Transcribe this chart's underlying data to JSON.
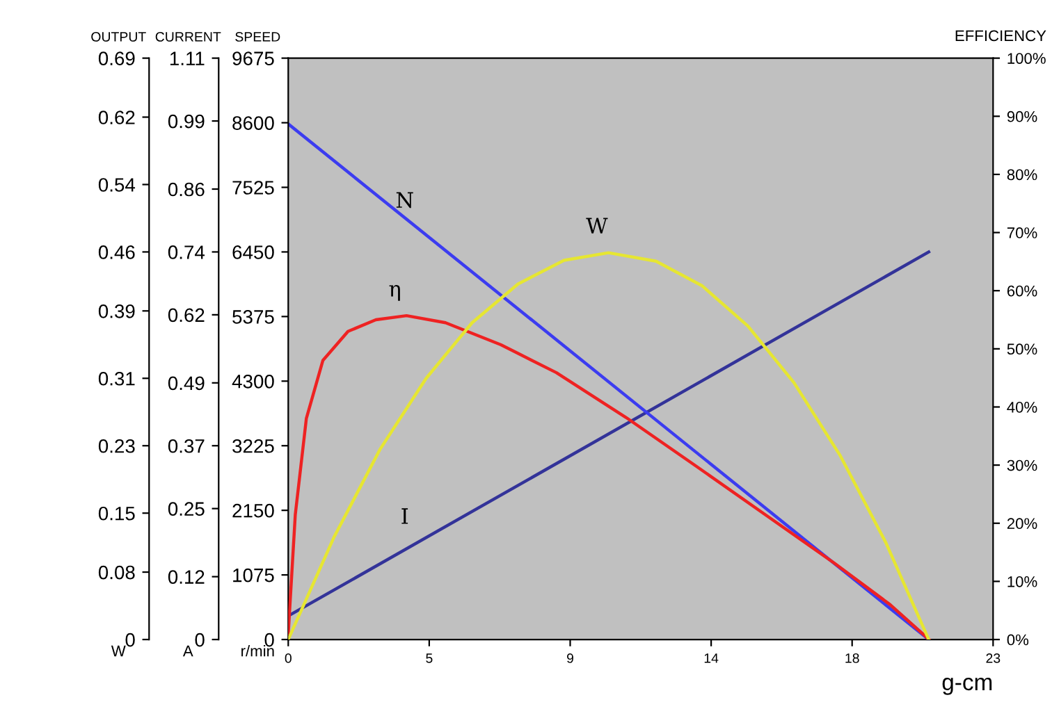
{
  "chart_data": [
    {
      "type": "line",
      "xlabel": "g-cm",
      "ylabel": "CURRENT",
      "y2label": "EFFICIENCY",
      "y3label": "OUTPUT",
      "annotations": [
        "A",
        "W"
      ],
      "xlim": [
        0,
        23
      ],
      "xticks": [
        0,
        {
          "value": 4.6,
          "label": "5"
        },
        {
          "value": 9.2,
          "label": "9"
        },
        {
          "value": 13.8,
          "label": "14"
        },
        {
          "value": 18.4,
          "label": "18"
        },
        23
      ],
      "ylim": [
        0,
        1.11
      ],
      "yticks": [
        0,
        0.12,
        0.25,
        0.37,
        0.49,
        0.62,
        0.74,
        0.86,
        0.99,
        1.11
      ],
      "y2lim": [
        0,
        100
      ],
      "y2ticks": [
        {
          "value": 0,
          "label": "0%"
        },
        {
          "value": 10,
          "label": "10%"
        },
        {
          "value": 20,
          "label": "20%"
        },
        {
          "value": 30,
          "label": "30%"
        },
        {
          "value": 40,
          "label": "40%"
        },
        {
          "value": 50,
          "label": "50%"
        },
        {
          "value": 60,
          "label": "60%"
        },
        {
          "value": 70,
          "label": "70%"
        },
        {
          "value": 80,
          "label": "80%"
        },
        {
          "value": 90,
          "label": "90%"
        },
        {
          "value": 100,
          "label": "100%"
        }
      ],
      "y3lim": [
        0,
        0.69
      ],
      "y3ticks": [
        0,
        0.08,
        0.15,
        0.23,
        0.31,
        0.39,
        0.46,
        0.54,
        0.62,
        0.69
      ],
      "series": [
        {
          "name": "I",
          "color": "#333399",
          "x": [
            0,
            20.9
          ],
          "values": [
            0.045,
            0.74
          ]
        },
        {
          "name": "W",
          "color": "#e6e632",
          "axis": "y3",
          "x": [
            0,
            1.5,
            3,
            4.5,
            6,
            7.5,
            9,
            10.45,
            12,
            13.5,
            15,
            16.5,
            18,
            19.5,
            20.9
          ],
          "values": [
            0,
            0.122,
            0.226,
            0.31,
            0.376,
            0.422,
            0.45,
            0.459,
            0.449,
            0.42,
            0.372,
            0.305,
            0.219,
            0.115,
            0
          ]
        },
        {
          "name": "η",
          "color": "#ee2222",
          "axis": "y2",
          "x": [
            0,
            0.23,
            0.59,
            1.13,
            1.95,
            2.86,
            3.86,
            5.13,
            6.94,
            8.75,
            11.02,
            13.29,
            15.56,
            17.83,
            19.64,
            20.91
          ],
          "values": [
            1,
            21.5,
            38,
            48,
            53,
            55,
            55.7,
            54.5,
            50.7,
            45.9,
            38.2,
            29.9,
            21.5,
            13.1,
            6,
            0
          ]
        }
      ]
    },
    {
      "type": "line",
      "ylabel": "SPEED",
      "annotations": [
        "r/min"
      ],
      "tick_labels": "y",
      "xlim": [
        0,
        23
      ],
      "ylim": [
        0,
        9675
      ],
      "yticks": [
        0,
        1075,
        2150,
        3225,
        4300,
        5375,
        6450,
        7525,
        8600,
        9675
      ],
      "series": [
        {
          "name": "N",
          "color": "#3c3cf0",
          "x": [
            0,
            20.9
          ],
          "values": [
            8580,
            0
          ]
        }
      ]
    }
  ]
}
